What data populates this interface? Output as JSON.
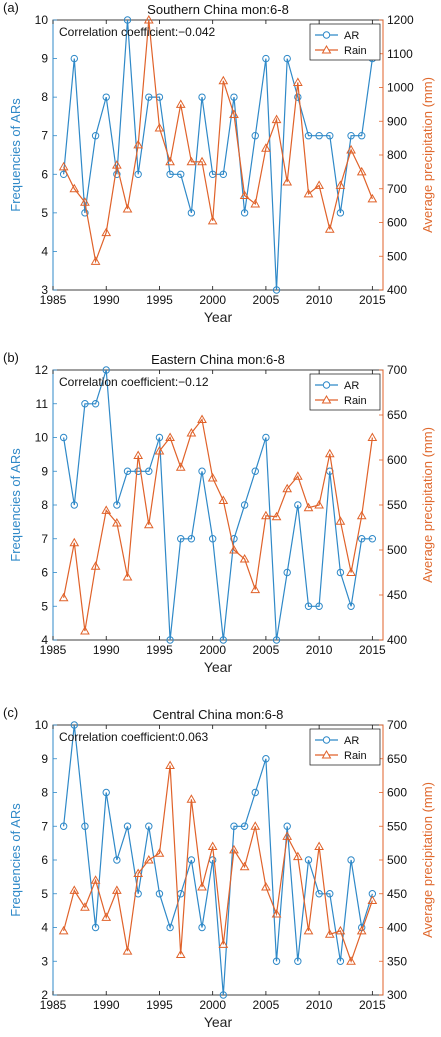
{
  "colors": {
    "ar": "#2f89c8",
    "rain": "#e0622a",
    "axis": "#111111"
  },
  "chart_data": [
    {
      "type": "line",
      "panel_label": "(a)",
      "panel_letter": "a",
      "title": "Southern China  mon:6-8",
      "xlabel": "Year",
      "ylabel_left": "Frequencies of ARs",
      "ylabel_right": "Average precipitation (mm)",
      "annotation": "Correlation coefficient:−0.042",
      "xlim": [
        1985,
        2016
      ],
      "xticks": [
        1985,
        1990,
        1995,
        2000,
        2005,
        2010,
        2015
      ],
      "ylim_left": [
        3,
        10
      ],
      "yticks_left": [
        3,
        4,
        5,
        6,
        7,
        8,
        9,
        10
      ],
      "ylim_right": [
        400,
        1200
      ],
      "yticks_right": [
        400,
        500,
        600,
        700,
        800,
        900,
        1000,
        1100,
        1200
      ],
      "legend": "top-right",
      "x": [
        1986,
        1987,
        1988,
        1989,
        1990,
        1991,
        1992,
        1993,
        1994,
        1995,
        1996,
        1997,
        1998,
        1999,
        2000,
        2001,
        2002,
        2003,
        2004,
        2005,
        2006,
        2007,
        2008,
        2009,
        2010,
        2011,
        2012,
        2013,
        2014,
        2015
      ],
      "series": [
        {
          "name": "AR",
          "axis": "left",
          "marker": "circle",
          "values": [
            6,
            9,
            5,
            7,
            8,
            6,
            10,
            6,
            8,
            8,
            6,
            6,
            5,
            8,
            6,
            6,
            8,
            5,
            7,
            9,
            3,
            9,
            8,
            7,
            7,
            7,
            5,
            7,
            7,
            9
          ]
        },
        {
          "name": "Rain",
          "axis": "right",
          "marker": "triangle",
          "values": [
            765,
            700,
            660,
            485,
            570,
            770,
            640,
            830,
            1200,
            880,
            780,
            950,
            780,
            780,
            605,
            1020,
            920,
            680,
            655,
            820,
            905,
            720,
            1015,
            685,
            710,
            580,
            710,
            815,
            750,
            670
          ]
        }
      ]
    },
    {
      "type": "line",
      "panel_label": "(b)",
      "panel_letter": "b",
      "title": "Eastern China  mon:6-8",
      "xlabel": "Year",
      "ylabel_left": "Frequencies of ARs",
      "ylabel_right": "Average precipitation (mm)",
      "annotation": "Correlation coefficient:−0.12",
      "xlim": [
        1985,
        2016
      ],
      "xticks": [
        1985,
        1990,
        1995,
        2000,
        2005,
        2010,
        2015
      ],
      "ylim_left": [
        4,
        12
      ],
      "yticks_left": [
        4,
        5,
        6,
        7,
        8,
        9,
        10,
        11,
        12
      ],
      "ylim_right": [
        400,
        700
      ],
      "yticks_right": [
        400,
        450,
        500,
        550,
        600,
        650,
        700
      ],
      "legend": "top-right",
      "x": [
        1986,
        1987,
        1988,
        1989,
        1990,
        1991,
        1992,
        1993,
        1994,
        1995,
        1996,
        1997,
        1998,
        1999,
        2000,
        2001,
        2002,
        2003,
        2004,
        2005,
        2006,
        2007,
        2008,
        2009,
        2010,
        2011,
        2012,
        2013,
        2014,
        2015
      ],
      "series": [
        {
          "name": "AR",
          "axis": "left",
          "marker": "circle",
          "values": [
            10,
            8,
            11,
            11,
            12,
            8,
            9,
            9,
            9,
            10,
            4,
            7,
            7,
            9,
            7,
            4,
            7,
            8,
            9,
            10,
            4,
            6,
            8,
            5,
            5,
            9,
            6,
            5,
            7,
            7
          ]
        },
        {
          "name": "Rain",
          "axis": "right",
          "marker": "triangle",
          "values": [
            447,
            508,
            410,
            482,
            544,
            530,
            470,
            605,
            528,
            610,
            625,
            592,
            630,
            645,
            580,
            555,
            500,
            490,
            456,
            538,
            537,
            568,
            582,
            547,
            550,
            607,
            532,
            475,
            538,
            625
          ]
        }
      ]
    },
    {
      "type": "line",
      "panel_label": "(c)",
      "panel_letter": "c",
      "title": "Central China  mon:6-8",
      "xlabel": "Year",
      "ylabel_left": "Frequencies of ARs",
      "ylabel_right": "Average precipitation (mm)",
      "annotation": "Correlation coefficient:0.063",
      "xlim": [
        1985,
        2016
      ],
      "xticks": [
        1985,
        1990,
        1995,
        2000,
        2005,
        2010,
        2015
      ],
      "ylim_left": [
        2,
        10
      ],
      "yticks_left": [
        2,
        3,
        4,
        5,
        6,
        7,
        8,
        9,
        10
      ],
      "ylim_right": [
        300,
        700
      ],
      "yticks_right": [
        300,
        350,
        400,
        450,
        500,
        550,
        600,
        650,
        700
      ],
      "legend": "top-right",
      "x": [
        1986,
        1987,
        1988,
        1989,
        1990,
        1991,
        1992,
        1993,
        1994,
        1995,
        1996,
        1997,
        1998,
        1999,
        2000,
        2001,
        2002,
        2003,
        2004,
        2005,
        2006,
        2007,
        2008,
        2009,
        2010,
        2011,
        2012,
        2013,
        2014,
        2015
      ],
      "series": [
        {
          "name": "AR",
          "axis": "left",
          "marker": "circle",
          "values": [
            7,
            10,
            7,
            4,
            8,
            6,
            7,
            5,
            7,
            5,
            4,
            5,
            6,
            4,
            6,
            2,
            7,
            7,
            8,
            9,
            3,
            7,
            3,
            6,
            5,
            5,
            3,
            6,
            4,
            5
          ]
        },
        {
          "name": "Rain",
          "axis": "right",
          "marker": "triangle",
          "values": [
            395,
            455,
            430,
            470,
            415,
            455,
            365,
            480,
            500,
            510,
            640,
            360,
            590,
            460,
            520,
            375,
            515,
            490,
            550,
            460,
            420,
            535,
            505,
            395,
            520,
            390,
            395,
            350,
            395,
            440
          ]
        }
      ]
    }
  ]
}
